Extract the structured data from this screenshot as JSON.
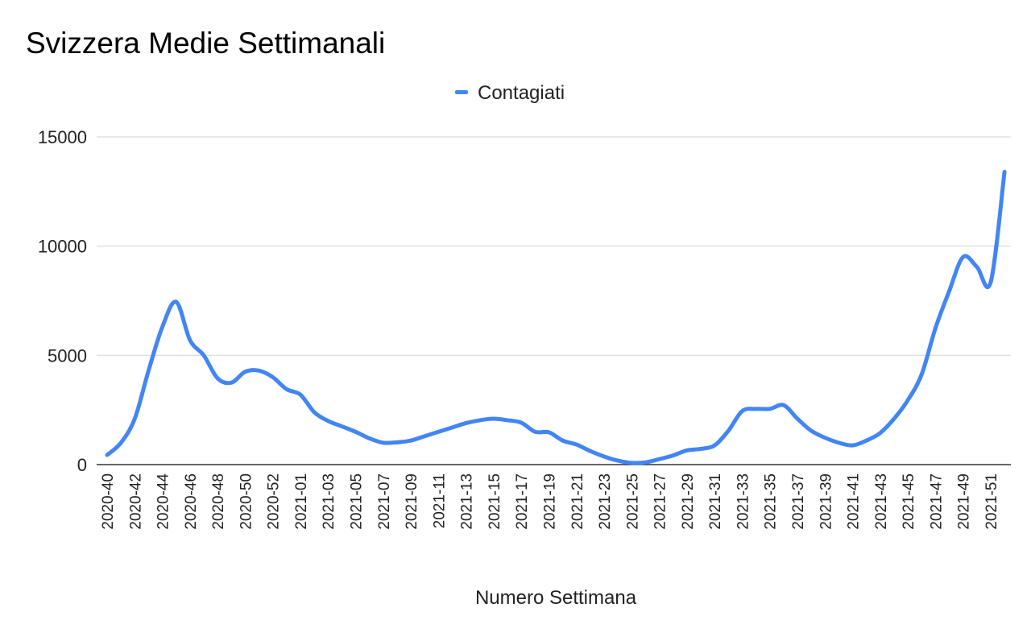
{
  "chart_data": {
    "type": "line",
    "title": "Svizzera Medie Settimanali",
    "xlabel": "Numero Settimana",
    "ylabel": "",
    "ylim": [
      0,
      15000
    ],
    "yticks": [
      "0",
      "5000",
      "10000",
      "15000"
    ],
    "ytick_values": [
      0,
      5000,
      10000,
      15000
    ],
    "grid": true,
    "legend_position": "top-center",
    "x": [
      "2020-40",
      "2020-41",
      "2020-42",
      "2020-43",
      "2020-44",
      "2020-45",
      "2020-46",
      "2020-47",
      "2020-48",
      "2020-49",
      "2020-50",
      "2020-51",
      "2020-52",
      "2020-53",
      "2021-01",
      "2021-02",
      "2021-03",
      "2021-04",
      "2021-05",
      "2021-06",
      "2021-07",
      "2021-08",
      "2021-09",
      "2021-10",
      "2021-11",
      "2021-12",
      "2021-13",
      "2021-14",
      "2021-15",
      "2021-16",
      "2021-17",
      "2021-18",
      "2021-19",
      "2021-20",
      "2021-21",
      "2021-22",
      "2021-23",
      "2021-24",
      "2021-25",
      "2021-26",
      "2021-27",
      "2021-28",
      "2021-29",
      "2021-30",
      "2021-31",
      "2021-32",
      "2021-33",
      "2021-34",
      "2021-35",
      "2021-36",
      "2021-37",
      "2021-38",
      "2021-39",
      "2021-40",
      "2021-41",
      "2021-42",
      "2021-43",
      "2021-44",
      "2021-45",
      "2021-46",
      "2021-47",
      "2021-48",
      "2021-49",
      "2021-50",
      "2021-51",
      "2021-52"
    ],
    "xtick_labels": [
      "2020-40",
      "2020-42",
      "2020-44",
      "2020-46",
      "2020-48",
      "2020-50",
      "2020-52",
      "2021-01",
      "2021-03",
      "2021-05",
      "2021-07",
      "2021-09",
      "2021-11",
      "2021-13",
      "2021-15",
      "2021-17",
      "2021-19",
      "2021-21",
      "2021-23",
      "2021-25",
      "2021-27",
      "2021-29",
      "2021-31",
      "2021-33",
      "2021-35",
      "2021-37",
      "2021-39",
      "2021-41",
      "2021-43",
      "2021-45",
      "2021-47",
      "2021-49",
      "2021-51"
    ],
    "series": [
      {
        "name": "Contagiati",
        "color": "#4285f4",
        "values": [
          440,
          1000,
          2100,
          4300,
          6300,
          7450,
          5700,
          5000,
          3950,
          3750,
          4250,
          4300,
          4000,
          3450,
          3200,
          2400,
          2000,
          1750,
          1500,
          1200,
          1000,
          1020,
          1100,
          1300,
          1500,
          1700,
          1900,
          2030,
          2100,
          2030,
          1920,
          1500,
          1480,
          1100,
          920,
          620,
          370,
          180,
          80,
          100,
          250,
          420,
          650,
          720,
          880,
          1550,
          2450,
          2550,
          2550,
          2720,
          2100,
          1550,
          1230,
          1000,
          880,
          1100,
          1450,
          2100,
          2950,
          4130,
          6250,
          7950,
          9500,
          9050,
          8350,
          13400
        ]
      }
    ]
  }
}
